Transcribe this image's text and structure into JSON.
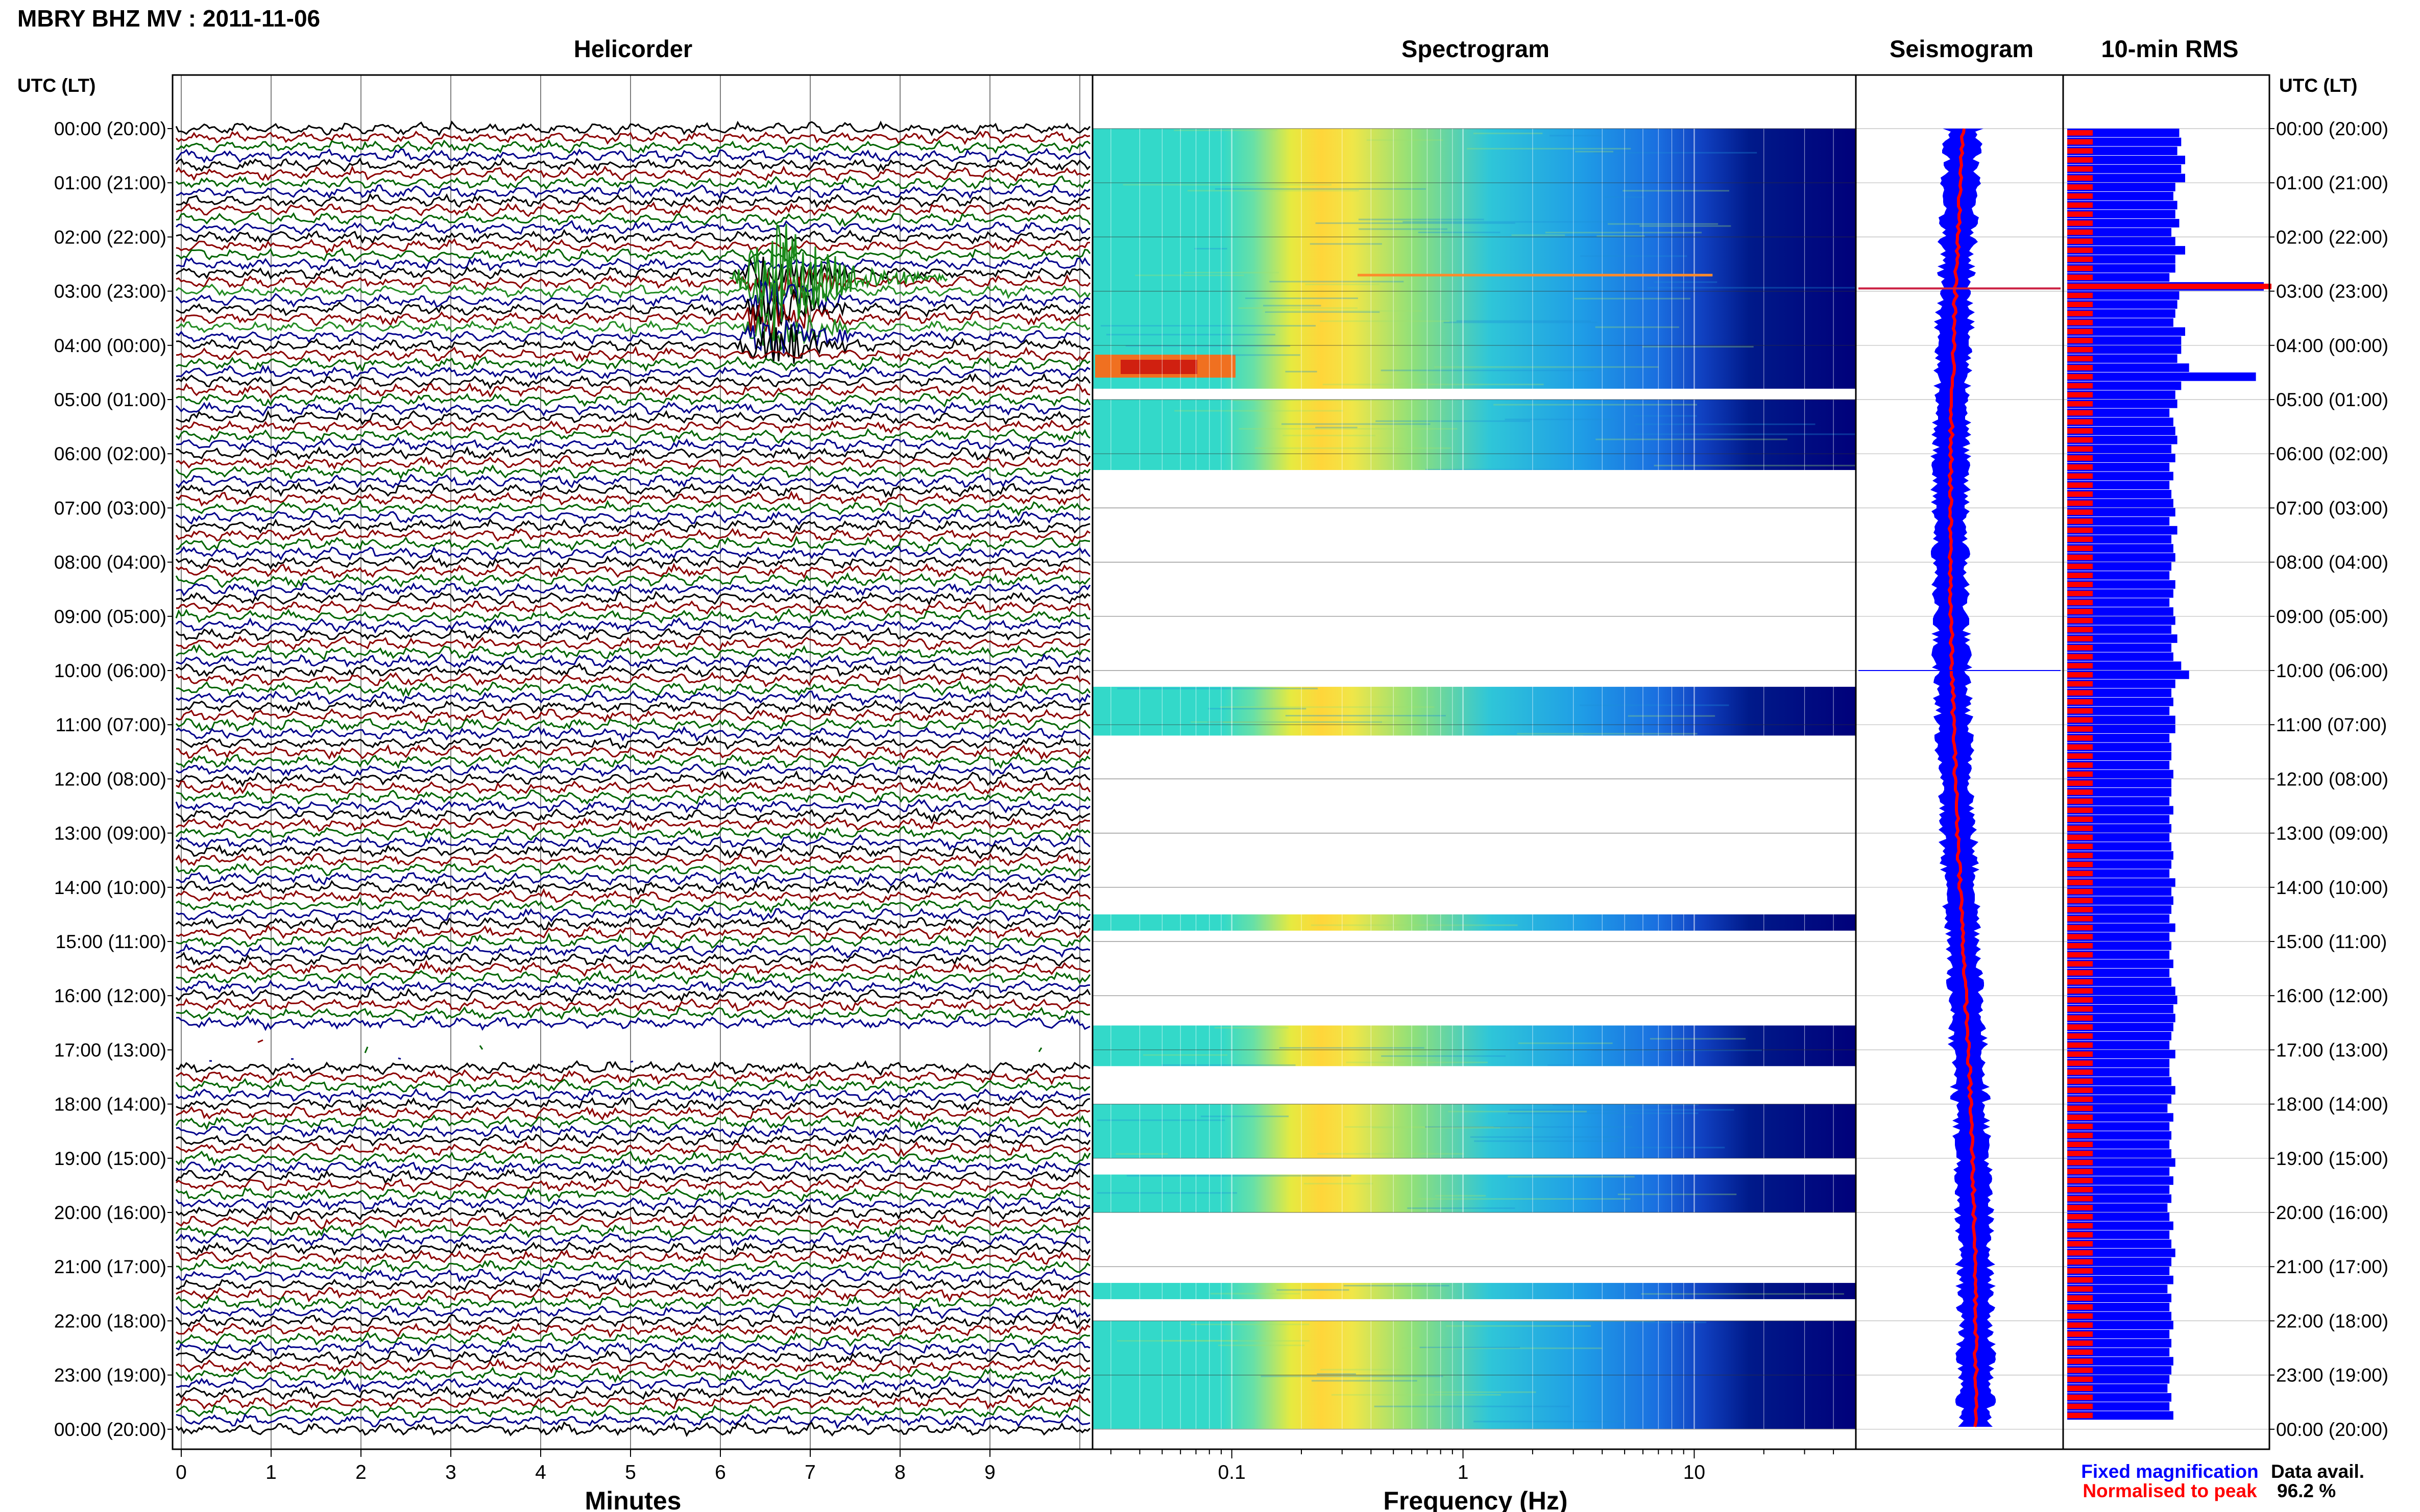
{
  "header": {
    "title": "MBRY BHZ MV : 2011-11-06",
    "panel_helicorder": "Helicorder",
    "panel_spectrogram": "Spectrogram",
    "panel_seismogram": "Seismogram",
    "panel_rms": "10-min RMS",
    "time_label_left": "UTC (LT)",
    "time_label_right": "UTC (LT)"
  },
  "footer": {
    "xlabel_minutes": "Minutes",
    "xlabel_frequency": "Frequency (Hz)",
    "legend_fixed": "Fixed magnification",
    "legend_normalised": "Normalised to peak",
    "data_avail_label": "Data avail.",
    "data_avail_value": "96.2 %"
  },
  "colors": {
    "trace_black": "#000000",
    "trace_red": "#8b0000",
    "trace_blue": "#00008b",
    "trace_green": "#006400",
    "fixed": "#0000ff",
    "normalised": "#ff0000"
  },
  "chart_data": [
    {
      "type": "line",
      "name": "Helicorder",
      "xlabel": "Minutes",
      "xlim": [
        0,
        10
      ],
      "xticks": [
        "0",
        "1",
        "2",
        "3",
        "4",
        "5",
        "6",
        "7",
        "8",
        "9"
      ],
      "ylabels": [
        "00:00 (20:00)",
        "01:00 (21:00)",
        "02:00 (22:00)",
        "03:00 (23:00)",
        "04:00 (00:00)",
        "05:00 (01:00)",
        "06:00 (02:00)",
        "07:00 (03:00)",
        "08:00 (04:00)",
        "09:00 (05:00)",
        "10:00 (06:00)",
        "11:00 (07:00)",
        "12:00 (08:00)",
        "13:00 (09:00)",
        "14:00 (10:00)",
        "15:00 (11:00)",
        "16:00 (12:00)",
        "17:00 (13:00)",
        "18:00 (14:00)",
        "19:00 (15:00)",
        "20:00 (16:00)",
        "21:00 (17:00)",
        "22:00 (18:00)",
        "23:00 (19:00)",
        "00:00 (20:00)"
      ],
      "rows_per_hour": 6,
      "event_hours": [
        2.6,
        4.1
      ],
      "event_minute_range": [
        6.1,
        7.4
      ],
      "gap_hours": [
        16.6,
        17.2
      ]
    },
    {
      "type": "heatmap",
      "name": "Spectrogram",
      "xlabel": "Frequency (Hz)",
      "scale": "log",
      "xlim": [
        0.025,
        50
      ],
      "xticks": [
        "0.1",
        "1",
        "10"
      ],
      "gap_hours": [
        4.8,
        5.0,
        6.3,
        10.3,
        11.2,
        14.5,
        14.8,
        16.55,
        17.3,
        18.0,
        19.0,
        19.3,
        20.0,
        21.3,
        21.6,
        22.0
      ],
      "event_hours": [
        2.9,
        4.3
      ]
    },
    {
      "type": "line",
      "name": "Seismogram",
      "series": [
        "Fixed magnification",
        "Normalised to peak"
      ],
      "spike_hours": [
        2.95,
        10.0
      ]
    },
    {
      "type": "bar",
      "name": "10-min RMS",
      "series": [
        "Fixed magnification",
        "Normalised to peak"
      ],
      "relative_values": [
        0.57,
        0.58,
        0.56,
        0.6,
        0.58,
        0.6,
        0.55,
        0.54,
        0.56,
        0.55,
        0.57,
        0.53,
        0.55,
        0.6,
        0.55,
        0.55,
        0.52,
        1.0,
        0.57,
        0.56,
        0.55,
        0.54,
        0.6,
        0.58,
        0.58,
        0.56,
        0.62,
        0.96,
        0.58,
        0.55,
        0.56,
        0.52,
        0.54,
        0.55,
        0.56,
        0.53,
        0.55,
        0.52,
        0.54,
        0.52,
        0.53,
        0.54,
        0.55,
        0.52,
        0.56,
        0.53,
        0.54,
        0.55,
        0.53,
        0.52,
        0.55,
        0.54,
        0.52,
        0.54,
        0.55,
        0.53,
        0.56,
        0.53,
        0.54,
        0.58,
        0.62,
        0.55,
        0.53,
        0.54,
        0.52,
        0.55,
        0.55,
        0.52,
        0.53,
        0.53,
        0.52,
        0.54,
        0.53,
        0.53,
        0.52,
        0.54,
        0.52,
        0.53,
        0.52,
        0.53,
        0.54,
        0.53,
        0.52,
        0.55,
        0.53,
        0.54,
        0.53,
        0.52,
        0.55,
        0.52,
        0.53,
        0.52,
        0.54,
        0.52,
        0.53,
        0.55,
        0.56,
        0.54,
        0.55,
        0.54,
        0.53,
        0.52,
        0.55,
        0.52,
        0.52,
        0.53,
        0.55,
        0.53,
        0.51,
        0.54,
        0.52,
        0.53,
        0.52,
        0.53,
        0.55,
        0.52,
        0.54,
        0.52,
        0.53,
        0.51,
        0.52,
        0.54,
        0.52,
        0.53,
        0.55,
        0.53,
        0.52,
        0.54,
        0.51,
        0.53,
        0.52,
        0.53,
        0.54,
        0.52,
        0.53,
        0.52,
        0.54,
        0.53,
        0.52,
        0.51,
        0.53,
        0.52,
        0.54
      ]
    }
  ]
}
